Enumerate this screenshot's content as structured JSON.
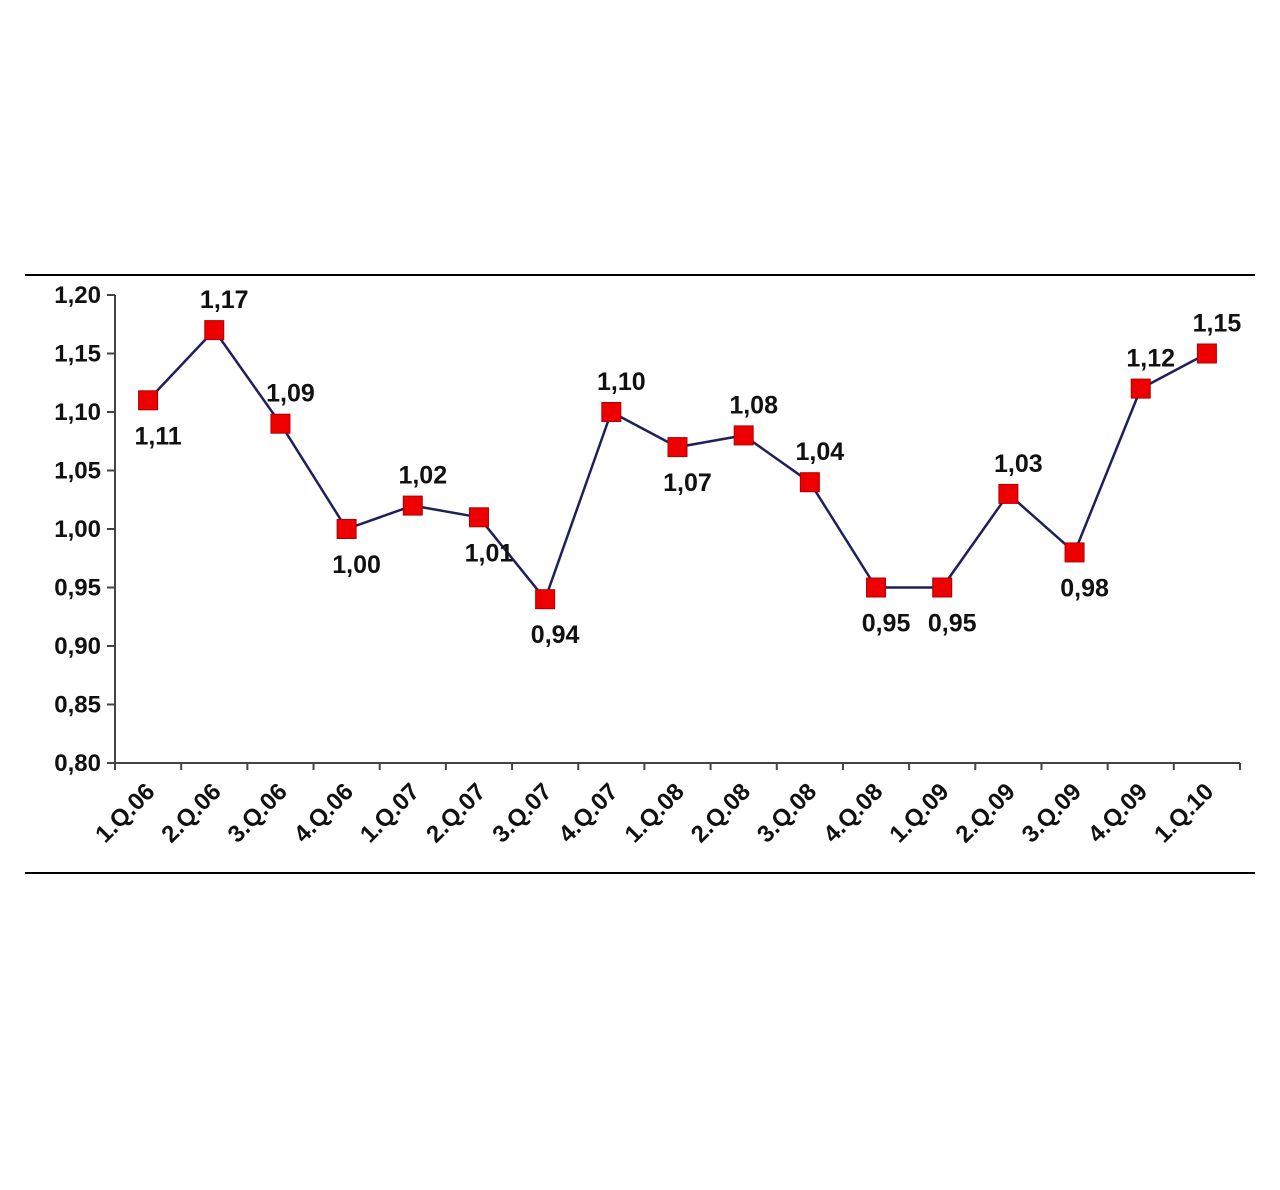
{
  "colors": {
    "line": "#1f1f5c",
    "marker": "#ee0000",
    "marker_stroke": "#b00000",
    "axis": "#444444",
    "text": "#111111"
  },
  "chart_data": {
    "type": "line",
    "title": "",
    "xlabel": "",
    "ylabel": "",
    "ylim": [
      0.8,
      1.2
    ],
    "y_ticks": [
      "0,80",
      "0,85",
      "0,90",
      "0,95",
      "1,00",
      "1,05",
      "1,10",
      "1,15",
      "1,20"
    ],
    "grid": false,
    "legend": "none",
    "categories": [
      "1.Q.06",
      "2.Q.06",
      "3.Q.06",
      "4.Q.06",
      "1.Q.07",
      "2.Q.07",
      "3.Q.07",
      "4.Q.07",
      "1.Q.08",
      "2.Q.08",
      "3.Q.08",
      "4.Q.08",
      "1.Q.09",
      "2.Q.09",
      "3.Q.09",
      "4.Q.09",
      "1.Q.10"
    ],
    "series": [
      {
        "values": [
          1.11,
          1.17,
          1.09,
          1.0,
          1.02,
          1.01,
          0.94,
          1.1,
          1.07,
          1.08,
          1.04,
          0.95,
          0.95,
          1.03,
          0.98,
          1.12,
          1.15
        ],
        "labels": [
          "1,11",
          "1,17",
          "1,09",
          "1,00",
          "1,02",
          "1,01",
          "0,94",
          "1,10",
          "1,07",
          "1,08",
          "1,04",
          "0,95",
          "0,95",
          "1,03",
          "0,98",
          "1,12",
          "1,15"
        ],
        "label_position": [
          "below",
          "above",
          "above",
          "below",
          "above",
          "below",
          "below",
          "above",
          "below",
          "above",
          "above",
          "below",
          "below",
          "above",
          "below",
          "above",
          "above"
        ]
      }
    ]
  }
}
